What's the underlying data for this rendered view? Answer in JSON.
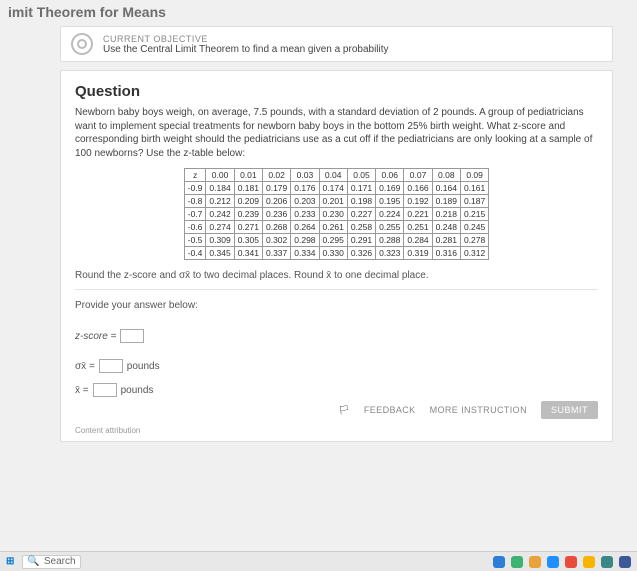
{
  "page": {
    "title": "imit Theorem for Means"
  },
  "objective": {
    "label": "CURRENT OBJECTIVE",
    "text": "Use the Central Limit Theorem to find a mean given a probability"
  },
  "question": {
    "heading": "Question",
    "body": "Newborn baby boys weigh, on average, 7.5 pounds, with a standard deviation of 2 pounds. A group of pediatricians want to implement special treatments for newborn baby boys in the bottom 25% birth weight. What z-score and corresponding birth weight should the pediatricians use as a cut off if the pediatricians are only looking at a sample of 100 newborns? Use the z-table below:",
    "round_instr": "Round the z-score and σx̄ to two decimal places. Round x̄ to one decimal place.",
    "provide": "Provide your answer below:"
  },
  "ztable": {
    "head": [
      "z",
      "0.00",
      "0.01",
      "0.02",
      "0.03",
      "0.04",
      "0.05",
      "0.06",
      "0.07",
      "0.08",
      "0.09"
    ],
    "rows": [
      [
        "-0.9",
        "0.184",
        "0.181",
        "0.179",
        "0.176",
        "0.174",
        "0.171",
        "0.169",
        "0.166",
        "0.164",
        "0.161"
      ],
      [
        "-0.8",
        "0.212",
        "0.209",
        "0.206",
        "0.203",
        "0.201",
        "0.198",
        "0.195",
        "0.192",
        "0.189",
        "0.187"
      ],
      [
        "-0.7",
        "0.242",
        "0.239",
        "0.236",
        "0.233",
        "0.230",
        "0.227",
        "0.224",
        "0.221",
        "0.218",
        "0.215"
      ],
      [
        "-0.6",
        "0.274",
        "0.271",
        "0.268",
        "0.264",
        "0.261",
        "0.258",
        "0.255",
        "0.251",
        "0.248",
        "0.245"
      ],
      [
        "-0.5",
        "0.309",
        "0.305",
        "0.302",
        "0.298",
        "0.295",
        "0.291",
        "0.288",
        "0.284",
        "0.281",
        "0.278"
      ],
      [
        "-0.4",
        "0.345",
        "0.341",
        "0.337",
        "0.334",
        "0.330",
        "0.326",
        "0.323",
        "0.319",
        "0.316",
        "0.312"
      ]
    ]
  },
  "answers": {
    "zscore_label": "z-score =",
    "sigma_label": "σx̄ =",
    "xbar_label": "x̄ =",
    "unit": "pounds"
  },
  "actions": {
    "feedback": "FEEDBACK",
    "more": "MORE INSTRUCTION",
    "submit": "SUBMIT"
  },
  "footer": {
    "attribution": "Content attribution"
  },
  "taskbar": {
    "search_placeholder": "Search",
    "tray_colors": [
      "#2e7dd7",
      "#3cb371",
      "#e8a33d",
      "#1e90ff",
      "#e84c3d",
      "#f7b500",
      "#3b8686",
      "#3b5998"
    ]
  }
}
